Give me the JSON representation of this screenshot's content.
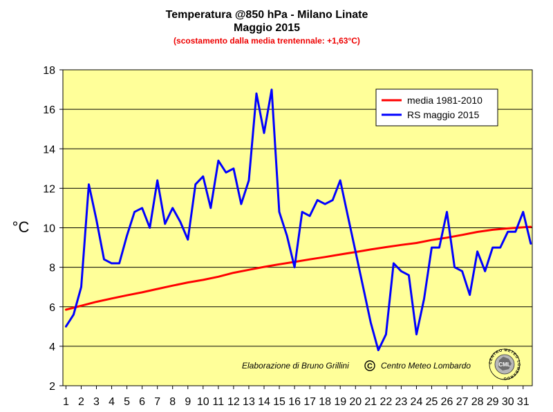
{
  "title": {
    "line1": "Temperatura @850 hPa - Milano Linate",
    "line2": "Maggio 2015",
    "subtitle": "(scostamento dalla media trentennale: +1,63°C)"
  },
  "credit": {
    "text": "Elaborazione di Bruno Grillini",
    "copyright_symbol": "©",
    "org": "Centro Meteo Lombardo"
  },
  "logo": {
    "text": "CML",
    "ring_text": "CENTRO METEO LOMBARDO"
  },
  "colors": {
    "plot_bg": "#ffff99",
    "media": "#ff0000",
    "rs": "#0000ff"
  },
  "chart_data": {
    "type": "line",
    "title": "Temperatura @850 hPa - Milano Linate",
    "subtitle": "Maggio 2015",
    "ylabel": "°C",
    "ylim": [
      2,
      18
    ],
    "yticks": [
      2,
      4,
      6,
      8,
      10,
      12,
      14,
      16,
      18
    ],
    "xticks": [
      "1",
      "2",
      "3",
      "4",
      "5",
      "6",
      "7",
      "8",
      "9",
      "10",
      "11",
      "12",
      "13",
      "14",
      "15",
      "16",
      "17",
      "18",
      "19",
      "20",
      "21",
      "22",
      "23",
      "24",
      "25",
      "26",
      "27",
      "28",
      "29",
      "30",
      "31"
    ],
    "x_range": [
      0.8,
      31.6
    ],
    "grid": true,
    "legend_position": "top-right",
    "series": [
      {
        "name": "media 1981-2010",
        "color": "#ff0000",
        "x": [
          1,
          2,
          3,
          4,
          5,
          6,
          7,
          8,
          9,
          10,
          11,
          12,
          13,
          14,
          15,
          16,
          17,
          18,
          19,
          20,
          21,
          22,
          23,
          24,
          25,
          26,
          27,
          28,
          29,
          30,
          31.5
        ],
        "values": [
          5.85,
          6.05,
          6.25,
          6.42,
          6.58,
          6.73,
          6.9,
          7.07,
          7.23,
          7.36,
          7.52,
          7.72,
          7.87,
          8.02,
          8.15,
          8.27,
          8.4,
          8.52,
          8.65,
          8.77,
          8.9,
          9.02,
          9.13,
          9.23,
          9.38,
          9.5,
          9.64,
          9.79,
          9.9,
          9.97,
          10.05
        ]
      },
      {
        "name": "RS maggio 2015",
        "color": "#0000ff",
        "x": [
          1,
          1.5,
          2,
          2.5,
          3,
          3.5,
          4,
          4.5,
          5,
          5.5,
          6,
          6.5,
          7,
          7.5,
          8,
          8.5,
          9,
          9.5,
          10,
          10.5,
          11,
          11.5,
          12,
          12.5,
          13,
          13.5,
          14,
          14.5,
          15,
          15.5,
          16,
          16.5,
          17,
          17.5,
          18,
          18.5,
          19,
          19.5,
          20,
          20.5,
          21,
          21.5,
          22,
          22.5,
          23,
          23.5,
          24,
          24.5,
          25,
          25.5,
          26,
          26.5,
          27,
          27.5,
          28,
          28.5,
          29,
          29.5,
          30,
          30.5,
          31,
          31.5
        ],
        "values": [
          5.0,
          5.6,
          7.0,
          12.2,
          10.4,
          8.4,
          8.2,
          8.2,
          9.6,
          10.8,
          11.0,
          10.0,
          12.4,
          10.2,
          11.0,
          10.3,
          9.4,
          12.2,
          12.6,
          11.0,
          13.4,
          12.8,
          13.0,
          11.2,
          12.4,
          16.8,
          14.8,
          17.0,
          10.8,
          9.6,
          8.0,
          10.8,
          10.6,
          11.4,
          11.2,
          11.4,
          12.4,
          10.6,
          8.8,
          7.0,
          5.2,
          3.8,
          4.6,
          8.2,
          7.8,
          7.6,
          4.6,
          6.4,
          9.0,
          9.0,
          10.8,
          8.0,
          7.8,
          6.6,
          8.8,
          7.8,
          9.0,
          9.0,
          9.8,
          9.8,
          10.8,
          9.2
        ]
      }
    ]
  }
}
